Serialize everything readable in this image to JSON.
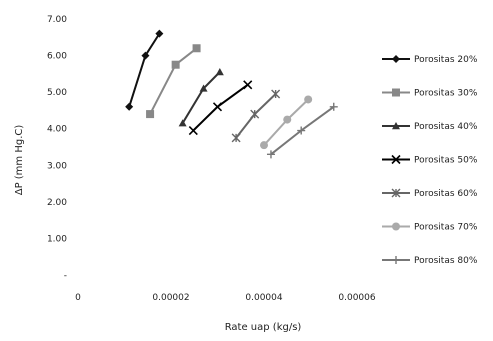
{
  "chart_data": {
    "type": "line",
    "xlabel": "Rate uap (kg/s)",
    "ylabel": "ΔP (mm Hg.C)",
    "xlim": [
      0,
      6e-05
    ],
    "ylim": [
      0,
      7
    ],
    "xticks": [
      "0",
      "0.00002",
      "0.00004",
      "0.00006"
    ],
    "yticks": [
      "-",
      "1.00",
      "2.00",
      "3.00",
      "4.00",
      "5.00",
      "6.00",
      "7.00"
    ],
    "ytick_values": [
      0,
      1,
      2,
      3,
      4,
      5,
      6,
      7
    ],
    "legend_position": "right",
    "grid": false,
    "series": [
      {
        "name": "Porositas 20%",
        "color": "#111111",
        "marker": "diamond",
        "x": [
          1.1e-05,
          1.45e-05,
          1.75e-05
        ],
        "y": [
          4.6,
          6.0,
          6.6
        ]
      },
      {
        "name": "Porositas 30%",
        "color": "#888888",
        "marker": "square",
        "x": [
          1.55e-05,
          2.1e-05,
          2.55e-05
        ],
        "y": [
          4.4,
          5.75,
          6.2
        ]
      },
      {
        "name": "Porositas 40%",
        "color": "#333333",
        "marker": "triangle",
        "x": [
          2.25e-05,
          2.7e-05,
          3.05e-05
        ],
        "y": [
          4.15,
          5.1,
          5.55
        ]
      },
      {
        "name": "Porositas 50%",
        "color": "#000000",
        "marker": "x",
        "x": [
          2.48e-05,
          3e-05,
          3.65e-05
        ],
        "y": [
          3.95,
          4.6,
          5.2
        ]
      },
      {
        "name": "Porositas 60%",
        "color": "#666666",
        "marker": "star",
        "x": [
          3.4e-05,
          3.8e-05,
          4.25e-05
        ],
        "y": [
          3.75,
          4.4,
          4.95
        ]
      },
      {
        "name": "Porositas 70%",
        "color": "#aaaaaa",
        "marker": "circle",
        "x": [
          4e-05,
          4.5e-05,
          4.95e-05
        ],
        "y": [
          3.55,
          4.25,
          4.8
        ]
      },
      {
        "name": "Porositas 80%",
        "color": "#777777",
        "marker": "plus",
        "x": [
          4.15e-05,
          4.8e-05,
          5.5e-05
        ],
        "y": [
          3.3,
          3.95,
          4.6
        ]
      }
    ]
  }
}
